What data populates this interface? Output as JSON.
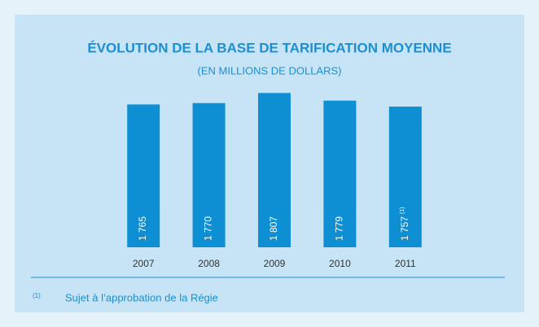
{
  "chart_data": {
    "type": "bar",
    "title": "ÉVOLUTION DE LA BASE DE TARIFICATION MOYENNE",
    "subtitle": "(EN MILLIONS DE DOLLARS)",
    "categories": [
      "2007",
      "2008",
      "2009",
      "2010",
      "2011"
    ],
    "values": [
      1765,
      1770,
      1807,
      1779,
      1757
    ],
    "value_labels": [
      "1 765",
      "1 770",
      "1 807",
      "1 779",
      "1 757"
    ],
    "color": "#0e8fd3",
    "ylim": [
      1240,
      1820
    ],
    "annotations": [
      {
        "category": "2011",
        "label": "(1)"
      }
    ],
    "footnote": {
      "label": "(1)",
      "text": "Sujet à l’approbation de la Régie"
    }
  }
}
